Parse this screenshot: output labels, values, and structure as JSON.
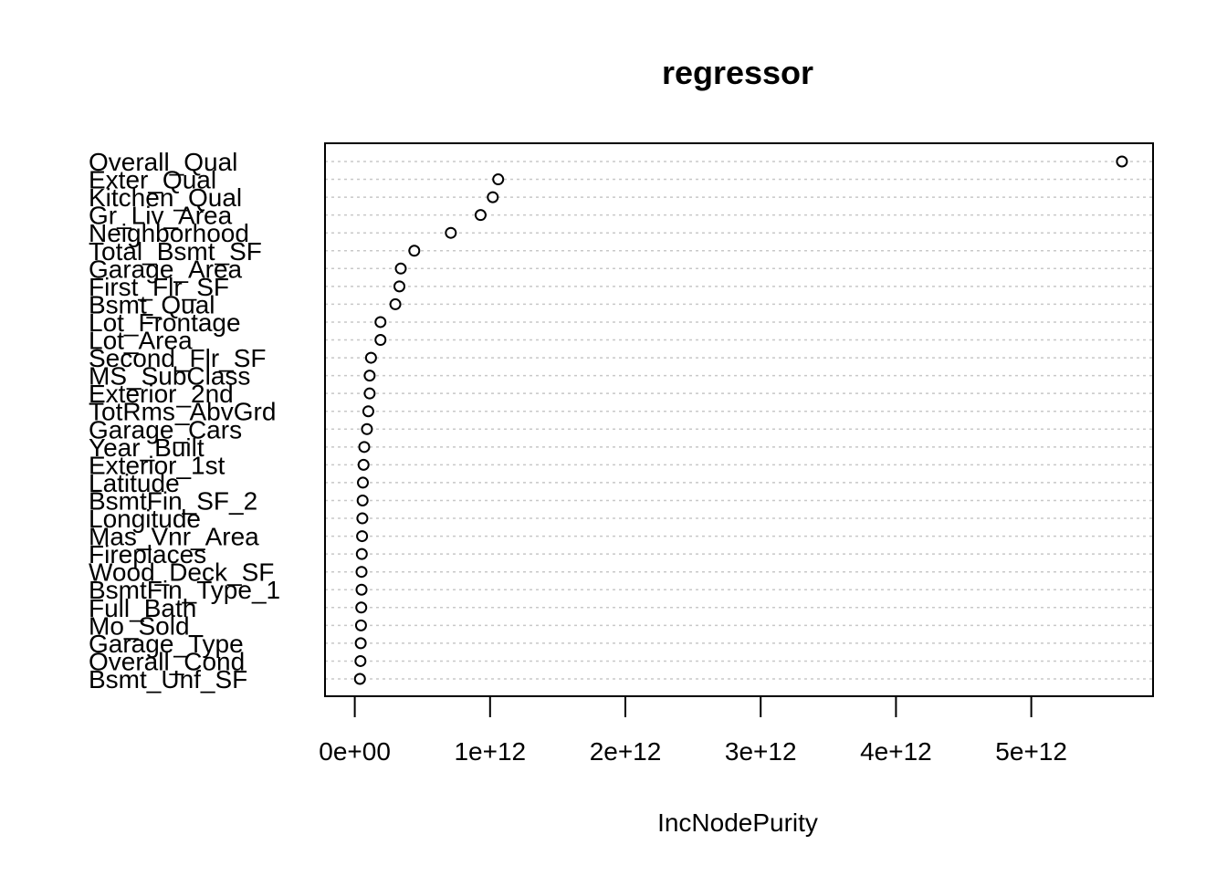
{
  "chart_data": {
    "type": "scatter",
    "title": "regressor",
    "xlabel": "IncNodePurity",
    "ylabel": "",
    "xlim": [
      -220000000000.0,
      5900000000000.0
    ],
    "xticks": [
      0,
      1000000000000.0,
      2000000000000.0,
      3000000000000.0,
      4000000000000.0,
      5000000000000.0
    ],
    "xtick_labels": [
      "0e+00",
      "1e+12",
      "2e+12",
      "3e+12",
      "4e+12",
      "5e+12"
    ],
    "grid": "dotted horizontal guides per category",
    "categories": [
      "Overall_Qual",
      "Exter_Qual",
      "Kitchen_Qual",
      "Gr_Liv_Area",
      "Neighborhood",
      "Total_Bsmt_SF",
      "Garage_Area",
      "First_Flr_SF",
      "Bsmt_Qual",
      "Lot_Frontage",
      "Lot_Area",
      "Second_Flr_SF",
      "MS_SubClass",
      "Exterior_2nd",
      "TotRms_AbvGrd",
      "Garage_Cars",
      "Year_Built",
      "Exterior_1st",
      "Latitude",
      "BsmtFin_SF_2",
      "Longitude",
      "Mas_Vnr_Area",
      "Fireplaces",
      "Wood_Deck_SF",
      "BsmtFin_Type_1",
      "Full_Bath",
      "Mo_Sold",
      "Garage_Type",
      "Overall_Cond",
      "Bsmt_Unf_SF"
    ],
    "values": [
      5670000000000.0,
      1060000000000.0,
      1020000000000.0,
      930000000000.0,
      710000000000.0,
      440000000000.0,
      340000000000.0,
      330000000000.0,
      300000000000.0,
      190000000000.0,
      190000000000.0,
      120000000000.0,
      110000000000.0,
      110000000000.0,
      100000000000.0,
      90000000000.0,
      70000000000.0,
      65000000000.0,
      60000000000.0,
      58000000000.0,
      56000000000.0,
      54000000000.0,
      52000000000.0,
      50000000000.0,
      50000000000.0,
      48000000000.0,
      46000000000.0,
      44000000000.0,
      42000000000.0,
      38000000000.0
    ]
  }
}
